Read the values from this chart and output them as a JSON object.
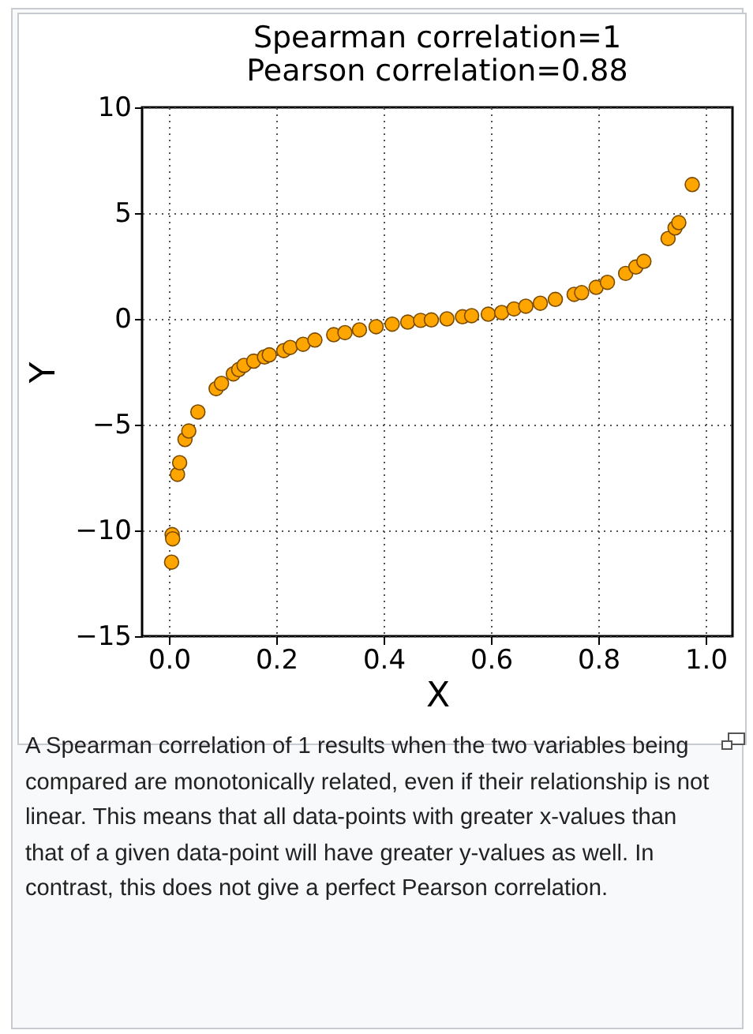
{
  "chart_data": {
    "type": "scatter",
    "title": [
      "Spearman correlation=1",
      "Pearson correlation=0.88"
    ],
    "xlabel": "X",
    "ylabel": "Y",
    "x": [
      0.005,
      0.006,
      0.007,
      0.016,
      0.02,
      0.03,
      0.037,
      0.054,
      0.088,
      0.098,
      0.12,
      0.13,
      0.14,
      0.158,
      0.178,
      0.187,
      0.214,
      0.226,
      0.25,
      0.272,
      0.307,
      0.328,
      0.355,
      0.386,
      0.416,
      0.445,
      0.469,
      0.489,
      0.518,
      0.547,
      0.564,
      0.595,
      0.62,
      0.643,
      0.665,
      0.692,
      0.72,
      0.755,
      0.769,
      0.796,
      0.817,
      0.851,
      0.87,
      0.885,
      0.93,
      0.943,
      0.95,
      0.975
    ],
    "series": [
      {
        "color": "#ffa500",
        "values": [
          -11.5,
          -10.2,
          -10.4,
          -7.35,
          -6.8,
          -5.7,
          -5.3,
          -4.4,
          -3.3,
          -3.05,
          -2.6,
          -2.4,
          -2.2,
          -2.0,
          -1.8,
          -1.7,
          -1.5,
          -1.35,
          -1.2,
          -1.0,
          -0.75,
          -0.65,
          -0.52,
          -0.37,
          -0.25,
          -0.15,
          -0.07,
          -0.05,
          0.0,
          0.1,
          0.15,
          0.22,
          0.3,
          0.47,
          0.6,
          0.74,
          0.92,
          1.16,
          1.24,
          1.49,
          1.73,
          2.15,
          2.45,
          2.72,
          3.8,
          4.3,
          4.55,
          6.35
        ]
      }
    ],
    "xlim": [
      -0.05,
      1.05
    ],
    "ylim": [
      -15,
      10
    ],
    "xticks": [
      {
        "value": 0,
        "label": "0.0"
      },
      {
        "value": 0.2,
        "label": "0.2"
      },
      {
        "value": 0.4,
        "label": "0.4"
      },
      {
        "value": 0.6,
        "label": "0.6"
      },
      {
        "value": 0.8,
        "label": "0.8"
      },
      {
        "value": 1,
        "label": "1.0"
      }
    ],
    "yticks": [
      {
        "value": -15,
        "label": "−15"
      },
      {
        "value": -10,
        "label": "−10"
      },
      {
        "value": -5,
        "label": "−5"
      },
      0,
      5,
      10
    ],
    "grid": true,
    "marker": "circle",
    "annotations": [
      "A Spearman correlation of 1 results when the two variables being compared are monotonically related, even if their relationship is not linear. This means that all data-points with greater x-values than that of a given data-point will have greater y-values as well. In contrast, this does not give a perfect Pearson correlation."
    ]
  }
}
